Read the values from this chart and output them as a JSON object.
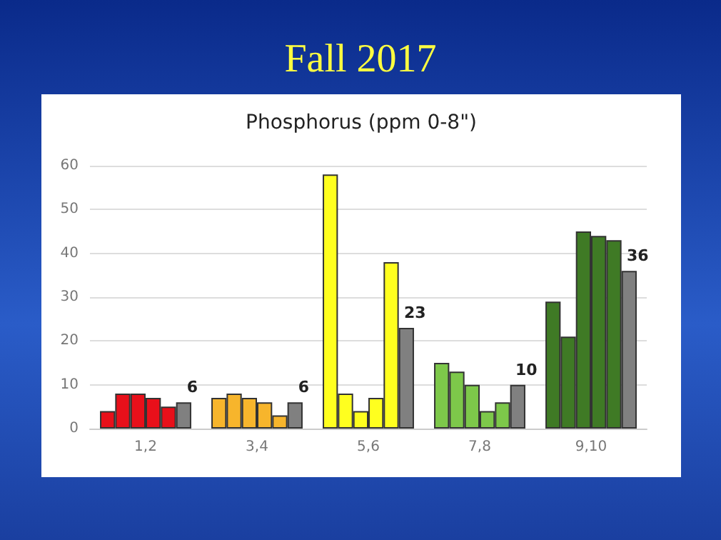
{
  "chart_data": {
    "type": "bar",
    "title": "Fall 2017",
    "subtitle": "Phosphorus (ppm 0-8\")",
    "categories": [
      "1,2",
      "3,4",
      "5,6",
      "7,8",
      "9,10"
    ],
    "series": [
      {
        "colors": [
          "#e8101a",
          "#f7b52c",
          "#ffff1f",
          "#7dc84a",
          "#3f7a25"
        ],
        "values": [
          4,
          7,
          58,
          15,
          29
        ]
      },
      {
        "colors": [
          "#e8101a",
          "#f7b52c",
          "#ffff1f",
          "#7dc84a",
          "#3f7a25"
        ],
        "values": [
          8,
          8,
          8,
          13,
          21
        ]
      },
      {
        "colors": [
          "#e8101a",
          "#f7b52c",
          "#ffff1f",
          "#7dc84a",
          "#3f7a25"
        ],
        "values": [
          8,
          7,
          4,
          10,
          45
        ]
      },
      {
        "colors": [
          "#e8101a",
          "#f7b52c",
          "#ffff1f",
          "#7dc84a",
          "#3f7a25"
        ],
        "values": [
          7,
          6,
          7,
          4,
          44
        ]
      },
      {
        "colors": [
          "#e8101a",
          "#f7b52c",
          "#ffff1f",
          "#7dc84a",
          "#3f7a25"
        ],
        "values": [
          5,
          3,
          38,
          6,
          43
        ]
      },
      {
        "color": "#808080",
        "values": [
          6,
          6,
          23,
          10,
          36
        ],
        "value_labels": [
          "6",
          "6",
          "23",
          "10",
          "36"
        ]
      }
    ],
    "ylim": [
      0,
      60
    ],
    "yticks": [
      0,
      10,
      20,
      30,
      40,
      50,
      60
    ],
    "grid": "y"
  }
}
